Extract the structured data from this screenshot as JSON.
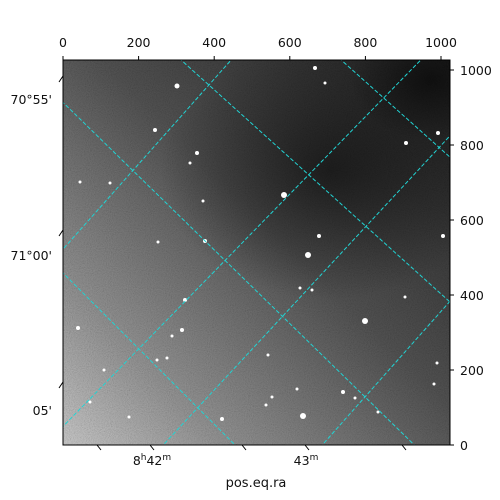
{
  "figure": {
    "xlabel": "pos.eq.ra",
    "pixel_top_ticks": [
      "0",
      "200",
      "400",
      "600",
      "800",
      "1000"
    ],
    "pixel_right_ticks": [
      "1000",
      "800",
      "600",
      "400",
      "200",
      "0"
    ],
    "dec_ticks": [
      "70°55'",
      "71°00'",
      "05'"
    ],
    "ra_ticks": [
      {
        "h": "8",
        "hsup": "h",
        "m": "42",
        "msup": "m"
      },
      {
        "h": "",
        "hsup": "",
        "m": "43",
        "msup": "m"
      }
    ],
    "grid_color": "#22d3d3"
  }
}
